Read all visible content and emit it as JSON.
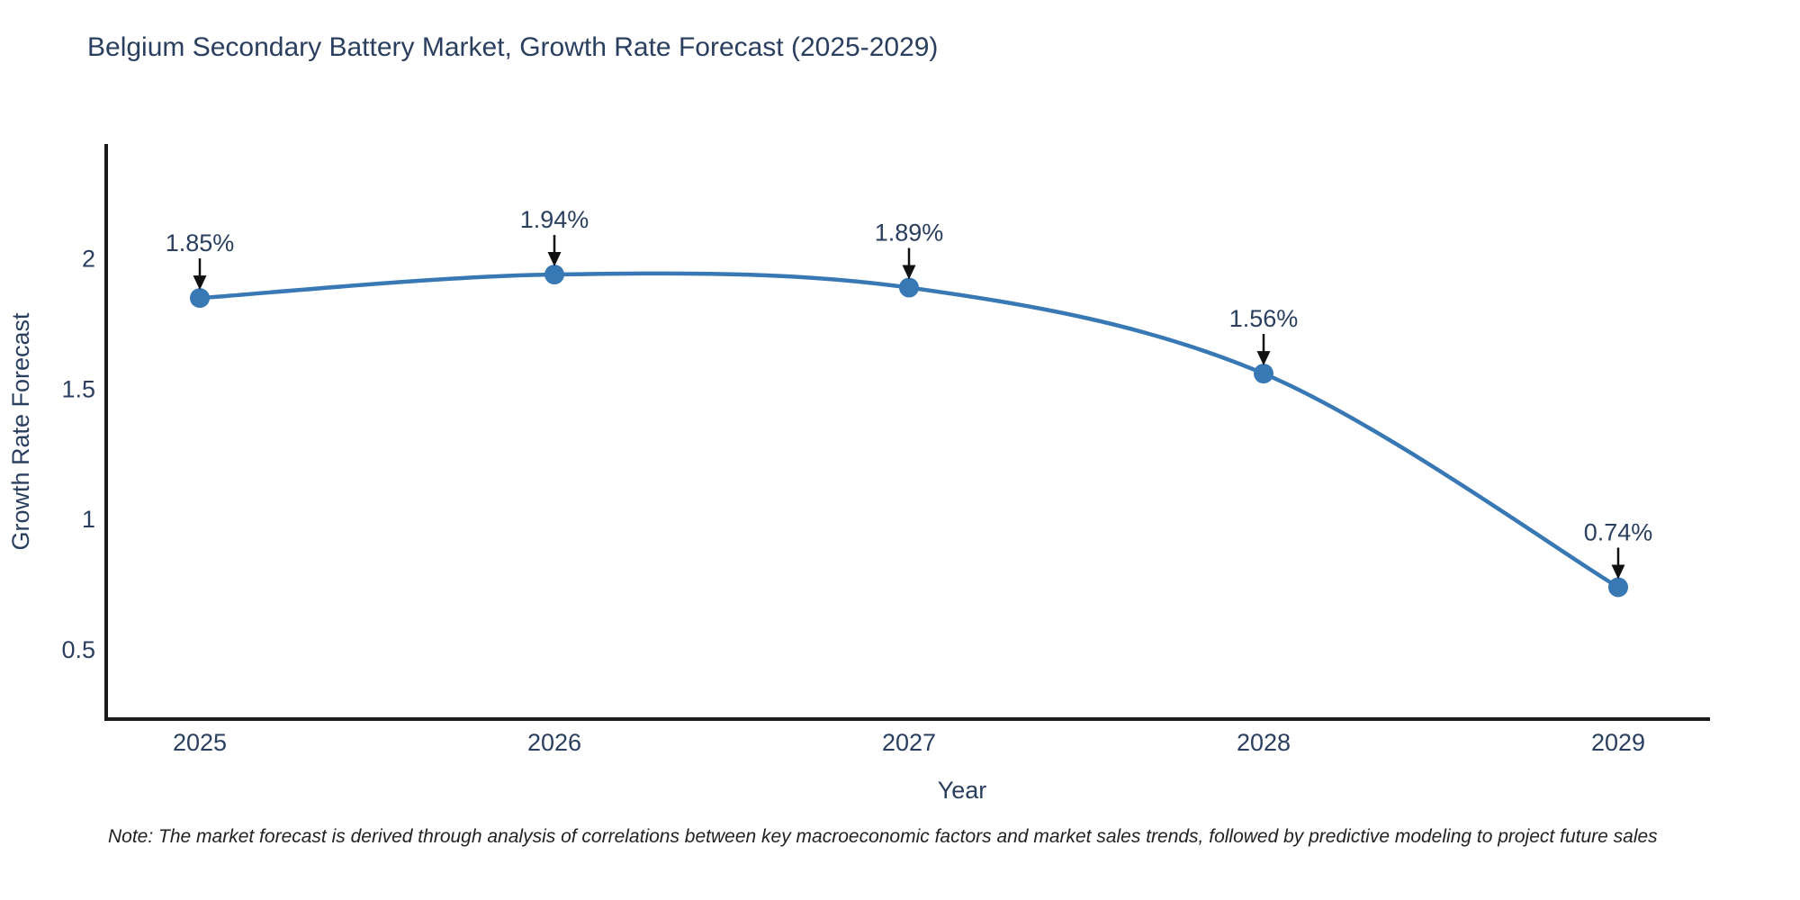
{
  "title": "Belgium Secondary Battery Market, Growth Rate Forecast (2025-2029)",
  "note": "Note: The market forecast is derived through analysis of correlations between key macroeconomic factors and market sales trends, followed by predictive modeling to project future sales",
  "colors": {
    "accent": "#3878b4",
    "text": "#2a3f5f",
    "axis_line": "#1b1b1b",
    "arrow": "#111111",
    "note_text": "#222222",
    "background": "#ffffff"
  },
  "chart_data": {
    "type": "line",
    "title": "Belgium Secondary Battery Market, Growth Rate Forecast (2025-2029)",
    "xlabel": "Year",
    "ylabel": "Growth Rate Forecast",
    "categories": [
      "2025",
      "2026",
      "2027",
      "2028",
      "2029"
    ],
    "values": [
      1.85,
      1.94,
      1.89,
      1.56,
      0.74
    ],
    "point_labels": [
      "1.85%",
      "1.94%",
      "1.89%",
      "1.56%",
      "0.74%"
    ],
    "y_ticks": [
      0.5,
      1,
      1.5,
      2
    ],
    "ylim": [
      0.234,
      2.441
    ],
    "line_shape": "spline",
    "markers": true,
    "grid": false,
    "legend_position": "none",
    "annotations": "value labels with down arrows above each point"
  }
}
